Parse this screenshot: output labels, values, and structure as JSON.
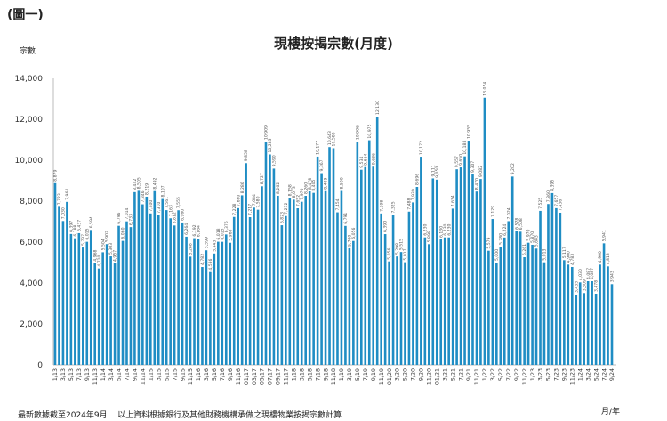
{
  "figure_number": "(圖一)",
  "footnote": "最新數據截至2024年9月    以上資料根據銀行及其他財務機構承做之現樓物業按揭宗數計算",
  "chart_data": {
    "type": "bar",
    "title": "現樓按揭宗數(月度)",
    "ylabel": "宗數",
    "xlabel": "月/年",
    "ylim": [
      0,
      14000
    ],
    "yticks": [
      "0",
      "2,000",
      "4,000",
      "6,000",
      "8,000",
      "10,000",
      "12,000",
      "14,000"
    ],
    "grid": false,
    "bar_color": "#1f8dc4",
    "categories": [
      "1/13",
      "2/13",
      "3/13",
      "4/13",
      "5/13",
      "6/13",
      "7/13",
      "8/13",
      "9/13",
      "10/13",
      "11/13",
      "12/13",
      "1/14",
      "2/14",
      "3/14",
      "4/14",
      "5/14",
      "6/14",
      "7/14",
      "8/14",
      "9/14",
      "10/14",
      "11/14",
      "12/14",
      "1/15",
      "2/15",
      "3/15",
      "4/15",
      "5/15",
      "6/15",
      "7/15",
      "8/15",
      "9/15",
      "10/15",
      "11/15",
      "12/15",
      "1/16",
      "2/16",
      "3/16",
      "4/16",
      "5/16",
      "6/16",
      "7/16",
      "8/16",
      "9/16",
      "10/16",
      "11/16",
      "12/16",
      "01/17",
      "02/17",
      "03/17",
      "04/17",
      "05/17",
      "06/17",
      "07/17",
      "08/17",
      "09/17",
      "10/17",
      "11/17",
      "12/17",
      "1/18",
      "2/18",
      "3/18",
      "4/18",
      "5/18",
      "6/18",
      "7/18",
      "8/18",
      "9/18",
      "10/18",
      "11/18",
      "12/18",
      "1/19",
      "2/19",
      "3/19",
      "4/19",
      "5/19",
      "6/19",
      "7/19",
      "8/19",
      "9/19",
      "10/19",
      "11/19",
      "12/19",
      "01/20",
      "2/20",
      "3/20",
      "4/20",
      "5/20",
      "6/20",
      "7/20",
      "8/20",
      "9/20",
      "10/20",
      "11/20",
      "12/20",
      "01/21",
      "2/21",
      "3/21",
      "4/21",
      "5/21",
      "6/21",
      "7/21",
      "8/21",
      "9/21",
      "10/21",
      "11/21",
      "12/21",
      "1/22",
      "2/22",
      "3/22",
      "4/22",
      "5/22",
      "6/22",
      "7/22",
      "8/22",
      "9/22",
      "10/22",
      "11/22",
      "12/22",
      "1/23",
      "2/23",
      "3/23",
      "4/23",
      "5/23",
      "6/23",
      "7/23",
      "8/23",
      "9/23",
      "10/23",
      "11/23",
      "12/23",
      "1/24",
      "2/24",
      "3/24",
      "4/24",
      "5/24",
      "6/24",
      "7/24",
      "8/24",
      "9/24"
    ],
    "values": [
      8879,
      7723,
      7030,
      7964,
      6397,
      6188,
      6437,
      5737,
      6015,
      6594,
      4968,
      4710,
      5504,
      5902,
      5303,
      4957,
      6796,
      6060,
      7014,
      6733,
      8442,
      8505,
      7846,
      8219,
      7400,
      8492,
      7310,
      8107,
      7561,
      7163,
      6812,
      7555,
      6960,
      6264,
      5288,
      6192,
      6164,
      4782,
      5599,
      4536,
      5443,
      6018,
      6015,
      6375,
      5968,
      7228,
      7660,
      8286,
      9858,
      7217,
      7684,
      7580,
      8727,
      10909,
      10283,
      9590,
      8262,
      6823,
      7272,
      8158,
      8073,
      7652,
      7970,
      8260,
      8478,
      8405,
      10177,
      9367,
      8489,
      10643,
      10588,
      7454,
      8500,
      6791,
      5700,
      6056,
      10906,
      9534,
      9664,
      10975,
      9686,
      12130,
      7398,
      6390,
      5056,
      7325,
      5298,
      5515,
      5017,
      7488,
      7939,
      8696,
      10172,
      6230,
      5899,
      9111,
      9050,
      6130,
      6230,
      6230,
      7634,
      9557,
      9650,
      10188,
      10955,
      9307,
      8470,
      9082,
      13054,
      5579,
      7129,
      5000,
      5780,
      6224,
      7024,
      9202,
      6528,
      6508,
      5261,
      5970,
      5870,
      5683,
      7525,
      5013,
      7860,
      8395,
      7657,
      7436,
      5117,
      4900,
      4783,
      3435,
      4030,
      3509,
      4087,
      4087,
      3478,
      4900,
      5941,
      4813,
      3943
    ]
  }
}
